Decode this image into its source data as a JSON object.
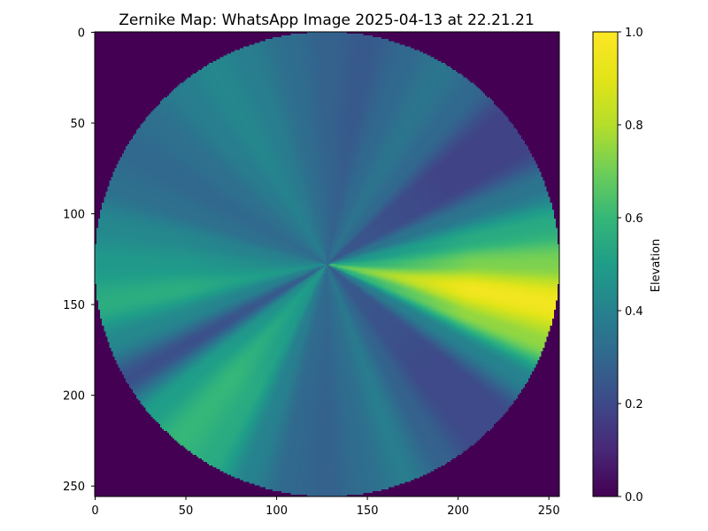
{
  "chart_data": {
    "type": "heatmap",
    "title": "Zernike Map: WhatsApp Image 2025-04-13 at 22.21.21",
    "xlabel": "",
    "ylabel": "",
    "xlim": [
      0,
      256
    ],
    "ylim": [
      256,
      0
    ],
    "x_ticks": [
      0,
      50,
      100,
      150,
      200,
      250
    ],
    "y_ticks": [
      0,
      50,
      100,
      150,
      200,
      250
    ],
    "grid": false,
    "colormap": "viridis",
    "colorbar": {
      "label": "Elevation",
      "range": [
        0,
        1
      ],
      "ticks": [
        "0.0",
        "0.2",
        "0.4",
        "0.6",
        "0.8",
        "1.0"
      ]
    },
    "grid_size": 256,
    "center": [
      128,
      128
    ],
    "radius": 128,
    "outside_value": 0.0,
    "surface": {
      "description_free_model": "elevation(theta) on circular aperture, theta in degrees measured counter-clockwise from +x (right)",
      "angular_samples_deg": [
        0,
        10,
        20,
        30,
        40,
        50,
        60,
        70,
        80,
        90,
        100,
        110,
        120,
        130,
        140,
        150,
        160,
        170,
        180,
        190,
        200,
        210,
        220,
        230,
        240,
        250,
        260,
        270,
        280,
        290,
        300,
        310,
        320,
        330,
        340,
        350,
        360
      ],
      "values": [
        0.72,
        0.55,
        0.35,
        0.18,
        0.18,
        0.3,
        0.35,
        0.3,
        0.25,
        0.28,
        0.32,
        0.38,
        0.42,
        0.38,
        0.33,
        0.3,
        0.33,
        0.42,
        0.48,
        0.56,
        0.42,
        0.22,
        0.5,
        0.6,
        0.55,
        0.4,
        0.3,
        0.28,
        0.32,
        0.38,
        0.28,
        0.2,
        0.2,
        0.4,
        0.75,
        0.96,
        0.72
      ],
      "radial_scale_at_origin": 0.5
    }
  }
}
